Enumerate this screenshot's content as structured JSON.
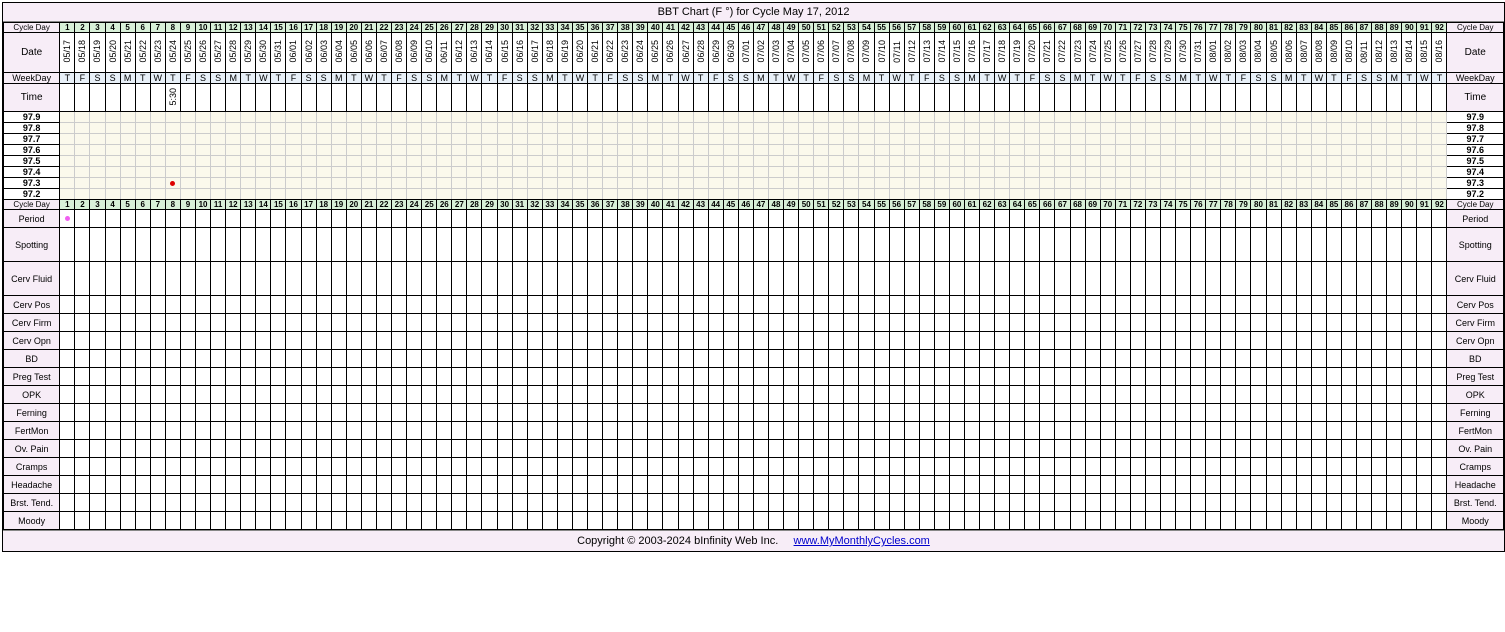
{
  "title": "BBT Chart (F °) for Cycle May 17, 2012",
  "footer_copyright": "Copyright © 2003-2024 bInfinity Web Inc.",
  "footer_link": "www.MyMonthlyCycles.com",
  "num_days": 92,
  "colors": {
    "page_bg": "#f7edf7",
    "cycleday_bg": "#d8f0d8",
    "weekday_bg": "#e8f0f8",
    "temp_bg": "#fbf9ec",
    "dot_red": "#d00000",
    "dot_pink": "#f060f0"
  },
  "labels": {
    "cycle_day": "Cycle Day",
    "date": "Date",
    "weekday": "WeekDay",
    "time": "Time",
    "period": "Period",
    "spotting": "Spotting",
    "cerv_fluid": "Cerv Fluid",
    "cerv_pos": "Cerv Pos",
    "cerv_firm": "Cerv Firm",
    "cerv_opn": "Cerv Opn",
    "bd": "BD",
    "preg_test": "Preg Test",
    "opk": "OPK",
    "ferning": "Ferning",
    "fertmon": "FertMon",
    "ov_pain": "Ov. Pain",
    "cramps": "Cramps",
    "headache": "Headache",
    "brst_tend": "Brst. Tend.",
    "moody": "Moody"
  },
  "cycle_days": [
    1,
    2,
    3,
    4,
    5,
    6,
    7,
    8,
    9,
    10,
    11,
    12,
    13,
    14,
    15,
    16,
    17,
    18,
    19,
    20,
    21,
    22,
    23,
    24,
    25,
    26,
    27,
    28,
    29,
    30,
    31,
    32,
    33,
    34,
    35,
    36,
    37,
    38,
    39,
    40,
    41,
    42,
    43,
    44,
    45,
    46,
    47,
    48,
    49,
    50,
    51,
    52,
    53,
    54,
    55,
    56,
    57,
    58,
    59,
    60,
    61,
    62,
    63,
    64,
    65,
    66,
    67,
    68,
    69,
    70,
    71,
    72,
    73,
    74,
    75,
    76,
    77,
    78,
    79,
    80,
    81,
    82,
    83,
    84,
    85,
    86,
    87,
    88,
    89,
    90,
    91,
    92
  ],
  "dates": [
    "05/17",
    "05/18",
    "05/19",
    "05/20",
    "05/21",
    "05/22",
    "05/23",
    "05/24",
    "05/25",
    "05/26",
    "05/27",
    "05/28",
    "05/29",
    "05/30",
    "05/31",
    "06/01",
    "06/02",
    "06/03",
    "06/04",
    "06/05",
    "06/06",
    "06/07",
    "06/08",
    "06/09",
    "06/10",
    "06/11",
    "06/12",
    "06/13",
    "06/14",
    "06/15",
    "06/16",
    "06/17",
    "06/18",
    "06/19",
    "06/20",
    "06/21",
    "06/22",
    "06/23",
    "06/24",
    "06/25",
    "06/26",
    "06/27",
    "06/28",
    "06/29",
    "06/30",
    "07/01",
    "07/02",
    "07/03",
    "07/04",
    "07/05",
    "07/06",
    "07/07",
    "07/08",
    "07/09",
    "07/10",
    "07/11",
    "07/12",
    "07/13",
    "07/14",
    "07/15",
    "07/16",
    "07/17",
    "07/18",
    "07/19",
    "07/20",
    "07/21",
    "07/22",
    "07/23",
    "07/24",
    "07/25",
    "07/26",
    "07/27",
    "07/28",
    "07/29",
    "07/30",
    "07/31",
    "08/01",
    "08/02",
    "08/03",
    "08/04",
    "08/05",
    "08/06",
    "08/07",
    "08/08",
    "08/09",
    "08/10",
    "08/11",
    "08/12",
    "08/13",
    "08/14",
    "08/15",
    "08/16"
  ],
  "weekdays": [
    "T",
    "F",
    "S",
    "S",
    "M",
    "T",
    "W",
    "T",
    "F",
    "S",
    "S",
    "M",
    "T",
    "W",
    "T",
    "F",
    "S",
    "S",
    "M",
    "T",
    "W",
    "T",
    "F",
    "S",
    "S",
    "M",
    "T",
    "W",
    "T",
    "F",
    "S",
    "S",
    "M",
    "T",
    "W",
    "T",
    "F",
    "S",
    "S",
    "M",
    "T",
    "W",
    "T",
    "F",
    "S",
    "S",
    "M",
    "T",
    "W",
    "T",
    "F",
    "S",
    "S",
    "M",
    "T",
    "W",
    "T",
    "F",
    "S",
    "S",
    "M",
    "T",
    "W",
    "T",
    "F",
    "S",
    "S",
    "M",
    "T",
    "W",
    "T",
    "F",
    "S",
    "S",
    "M",
    "T",
    "W",
    "T",
    "F",
    "S",
    "S",
    "M",
    "T",
    "W",
    "T",
    "F",
    "S",
    "S",
    "M",
    "T",
    "W",
    "T"
  ],
  "times": {
    "8": "5:30"
  },
  "temp_levels": [
    "97.9",
    "97.8",
    "97.7",
    "97.6",
    "97.5",
    "97.4",
    "97.3",
    "97.2"
  ],
  "temp_data_point": {
    "day": 8,
    "temp": "97.3"
  },
  "period_marks": {
    "1": "pink"
  },
  "symptom_rows": [
    "period",
    "spotting",
    "cerv_fluid",
    "cerv_pos",
    "cerv_firm",
    "cerv_opn",
    "bd",
    "preg_test",
    "opk",
    "ferning",
    "fertmon",
    "ov_pain",
    "cramps",
    "headache",
    "brst_tend",
    "moody"
  ],
  "tall_rows": [
    "spotting",
    "cerv_fluid"
  ]
}
